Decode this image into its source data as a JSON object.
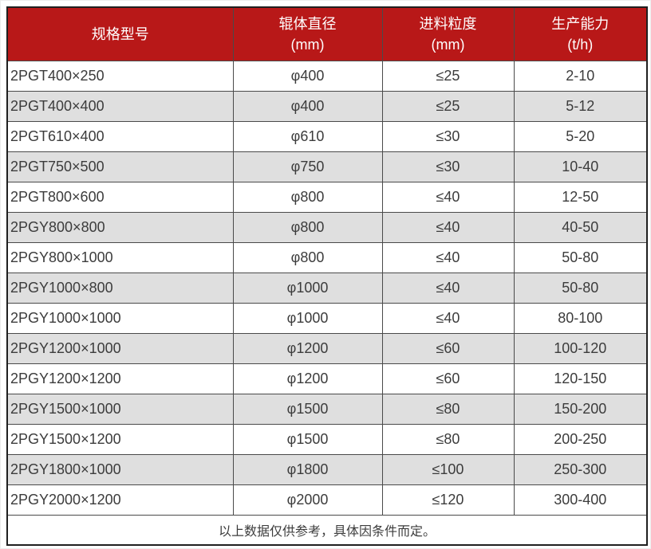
{
  "chart_data": {
    "type": "table",
    "header": [
      {
        "line1": "规格型号",
        "line2": ""
      },
      {
        "line1": "辊体直径",
        "line2": "(mm)"
      },
      {
        "line1": "进料粒度",
        "line2": "(mm)"
      },
      {
        "line1": "生产能力",
        "line2": "(t/h)"
      }
    ],
    "rows": [
      [
        "2PGT400×250",
        "φ400",
        "≤25",
        "2-10"
      ],
      [
        "2PGT400×400",
        "φ400",
        "≤25",
        "5-12"
      ],
      [
        "2PGT610×400",
        "φ610",
        "≤30",
        "5-20"
      ],
      [
        "2PGT750×500",
        "φ750",
        "≤30",
        "10-40"
      ],
      [
        "2PGT800×600",
        "φ800",
        "≤40",
        "12-50"
      ],
      [
        "2PGY800×800",
        "φ800",
        "≤40",
        "40-50"
      ],
      [
        "2PGY800×1000",
        "φ800",
        "≤40",
        "50-80"
      ],
      [
        "2PGY1000×800",
        "φ1000",
        "≤40",
        "50-80"
      ],
      [
        "2PGY1000×1000",
        "φ1000",
        "≤40",
        "80-100"
      ],
      [
        "2PGY1200×1000",
        "φ1200",
        "≤60",
        "100-120"
      ],
      [
        "2PGY1200×1200",
        "φ1200",
        "≤60",
        "120-150"
      ],
      [
        "2PGY1500×1000",
        "φ1500",
        "≤80",
        "150-200"
      ],
      [
        "2PGY1500×1200",
        "φ1500",
        "≤80",
        "200-250"
      ],
      [
        "2PGY1800×1000",
        "φ1800",
        "≤100",
        "250-300"
      ],
      [
        "2PGY2000×1200",
        "φ2000",
        "≤120",
        "300-400"
      ]
    ],
    "footer": "以上数据仅供参考，具体因条件而定。"
  },
  "colors": {
    "header_bg": "#b81818",
    "header_text": "#ffffff",
    "row_alt_bg": "#dfdfdf",
    "row_bg": "#ffffff",
    "grid_border": "#4a4a4a",
    "outer_border": "#1f1f1f",
    "body_text": "#3c3c3c"
  }
}
